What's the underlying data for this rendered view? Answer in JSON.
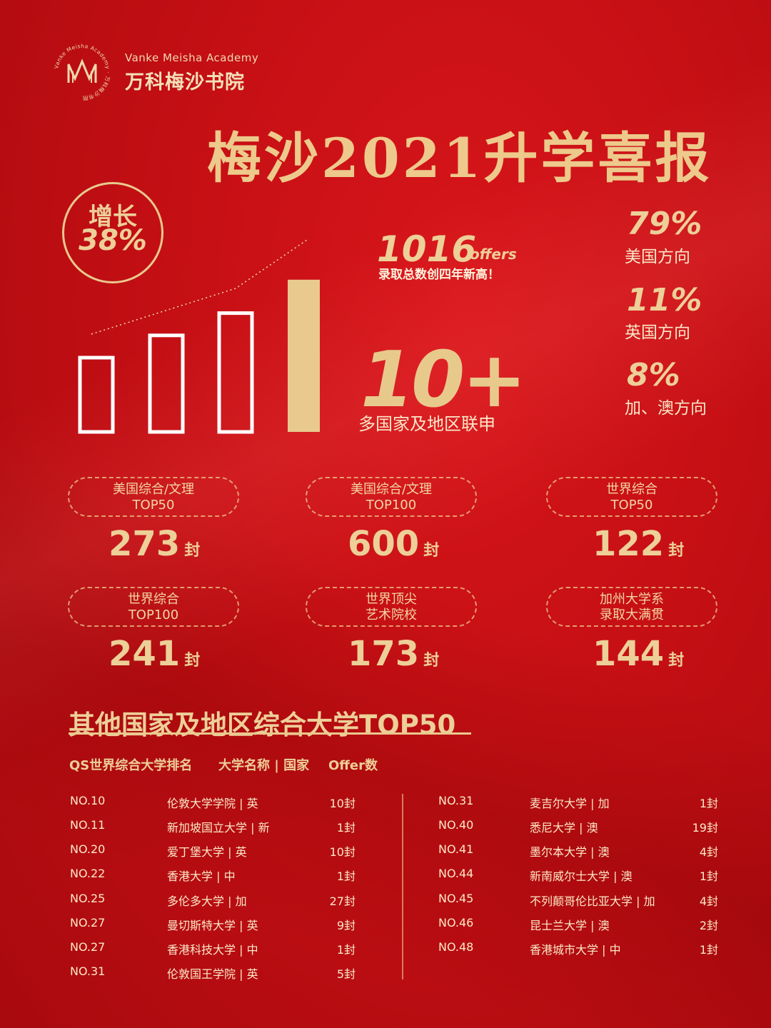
{
  "logo": {
    "en": "Vanke Meisha Academy",
    "cn": "万科梅沙书院",
    "ring_text": "Vanke Meisha Academy",
    "ring_cn": "万科梅沙书院"
  },
  "title": "梅沙2021升学喜报",
  "growth": {
    "line1": "增长",
    "line2": "38%"
  },
  "chart_data": {
    "type": "bar",
    "categories": [
      "",
      "",
      "",
      ""
    ],
    "values": [
      0.4,
      0.52,
      0.64,
      0.82
    ],
    "title": "",
    "xlabel": "",
    "ylabel": "",
    "ylim": [
      0,
      1
    ]
  },
  "offers": {
    "num": "1016",
    "unit": "offers",
    "desc": "录取总数创四年新高！"
  },
  "countries": {
    "num": "10+",
    "desc": "多国家及地区联申"
  },
  "directions": [
    {
      "pct": "79%",
      "label": "美国方向"
    },
    {
      "pct": "11%",
      "label": "英国方向"
    },
    {
      "pct": "8%",
      "label": "加、澳方向"
    }
  ],
  "stats": [
    {
      "line1": "美国综合/文理",
      "line2": "TOP50",
      "value": "273",
      "unit": "封"
    },
    {
      "line1": "美国综合/文理",
      "line2": "TOP100",
      "value": "600",
      "unit": "封"
    },
    {
      "line1": "世界综合",
      "line2": "TOP50",
      "value": "122",
      "unit": "封"
    },
    {
      "line1": "世界综合",
      "line2": "TOP100",
      "value": "241",
      "unit": "封"
    },
    {
      "line1": "世界顶尖",
      "line2": "艺术院校",
      "value": "173",
      "unit": "封"
    },
    {
      "line1": "加州大学系",
      "line2": "录取大满贯",
      "value": "144",
      "unit": "封"
    }
  ],
  "section": {
    "title": "其他国家及地区综合大学TOP50",
    "header": {
      "rank": "QS世界综合大学排名",
      "name": "大学名称 | 国家",
      "offers": "Offer数"
    }
  },
  "left_rows": [
    {
      "rank": "NO.10",
      "name": "伦敦大学学院 | 英",
      "offers": "10封"
    },
    {
      "rank": "NO.11",
      "name": "新加坡国立大学 | 新",
      "offers": "1封"
    },
    {
      "rank": "NO.20",
      "name": "爱丁堡大学 | 英",
      "offers": "10封"
    },
    {
      "rank": "NO.22",
      "name": "香港大学 | 中",
      "offers": "1封"
    },
    {
      "rank": "NO.25",
      "name": "多伦多大学 | 加",
      "offers": "27封"
    },
    {
      "rank": "NO.27",
      "name": "曼切斯特大学 | 英",
      "offers": "9封"
    },
    {
      "rank": "NO.27",
      "name": "香港科技大学 | 中",
      "offers": "1封"
    },
    {
      "rank": "NO.31",
      "name": "伦敦国王学院 | 英",
      "offers": "5封"
    }
  ],
  "right_rows": [
    {
      "rank": "NO.31",
      "name": "麦吉尔大学 | 加",
      "offers": "1封"
    },
    {
      "rank": "NO.40",
      "name": "悉尼大学 | 澳",
      "offers": "19封"
    },
    {
      "rank": "NO.41",
      "name": "墨尔本大学 | 澳",
      "offers": "4封"
    },
    {
      "rank": "NO.44",
      "name": "新南威尔士大学 | 澳",
      "offers": "1封"
    },
    {
      "rank": "NO.45",
      "name": "不列颠哥伦比亚大学 | 加",
      "offers": "4封"
    },
    {
      "rank": "NO.46",
      "name": "昆士兰大学 | 澳",
      "offers": "2封"
    },
    {
      "rank": "NO.48",
      "name": "香港城市大学 | 中",
      "offers": "1封"
    }
  ]
}
